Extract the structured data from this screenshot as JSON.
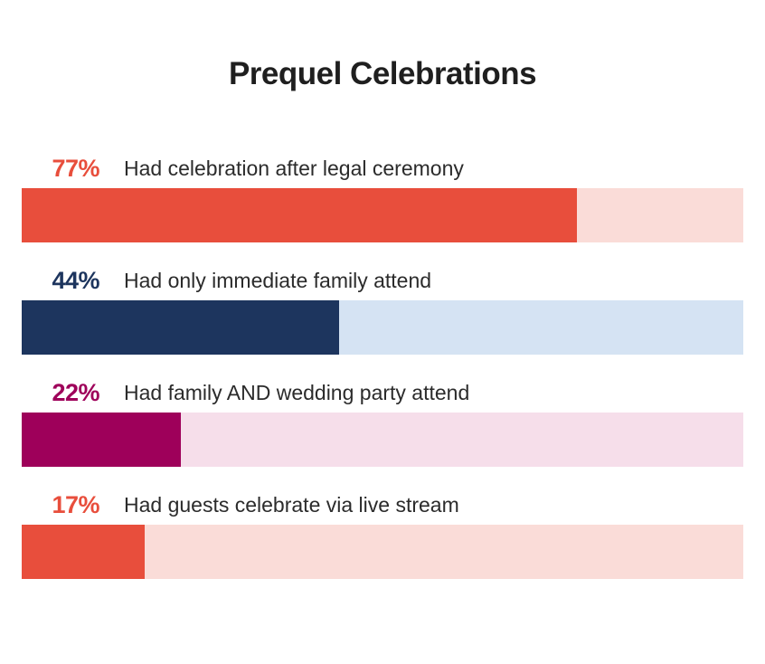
{
  "chart_data": {
    "type": "bar",
    "orientation": "horizontal",
    "title": "Prequel Celebrations",
    "xlim": [
      0,
      100
    ],
    "unit": "%",
    "categories": [
      "Had celebration after legal ceremony",
      "Had only immediate family attend",
      "Had family AND wedding party attend",
      "Had guests celebrate via live stream"
    ],
    "values": [
      77,
      44,
      22,
      17
    ],
    "value_labels": [
      "77%",
      "44%",
      "22%",
      "17%"
    ],
    "colors": [
      {
        "fill": "#e84e3c",
        "track": "#fadcd8"
      },
      {
        "fill": "#1d355e",
        "track": "#d5e3f3"
      },
      {
        "fill": "#9e005a",
        "track": "#f6deea"
      },
      {
        "fill": "#e84e3c",
        "track": "#fadcd8"
      }
    ],
    "grid": false,
    "legend": "none"
  }
}
